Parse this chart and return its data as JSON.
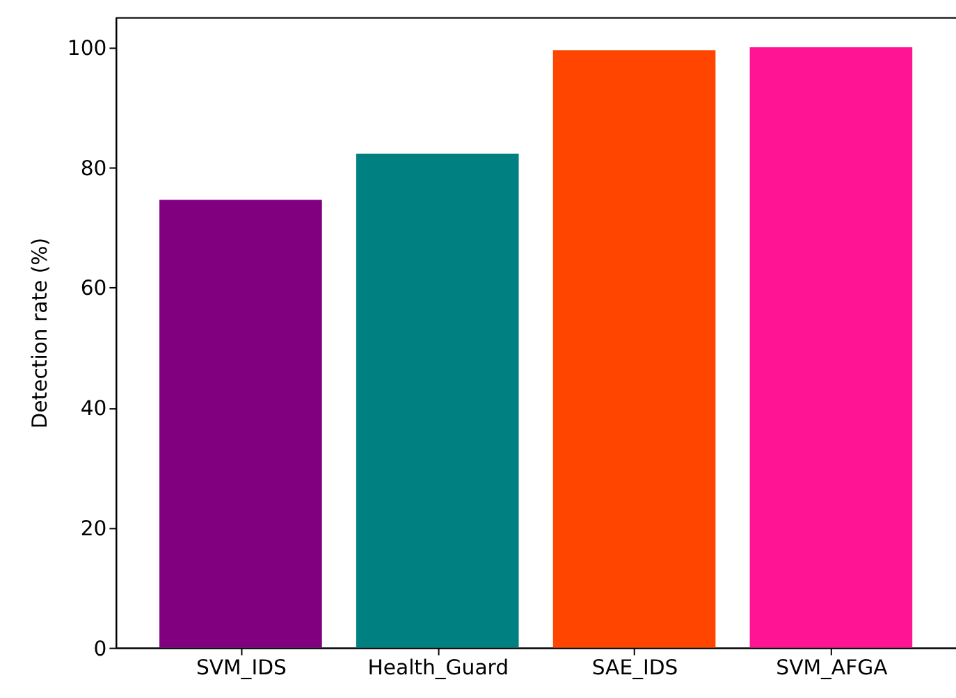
{
  "chart_data": {
    "type": "bar",
    "categories": [
      "SVM_IDS",
      "Health_Guard",
      "SAE_IDS",
      "SVM_AFGA"
    ],
    "values": [
      74.6,
      82.3,
      99.5,
      100
    ],
    "colors": [
      "#800080",
      "#008080",
      "#ff4500",
      "#ff1493"
    ],
    "ylabel": "Detection rate (%)",
    "ylim": [
      0,
      105
    ],
    "yticks": [
      0,
      20,
      40,
      60,
      80,
      100
    ],
    "grid": false
  }
}
